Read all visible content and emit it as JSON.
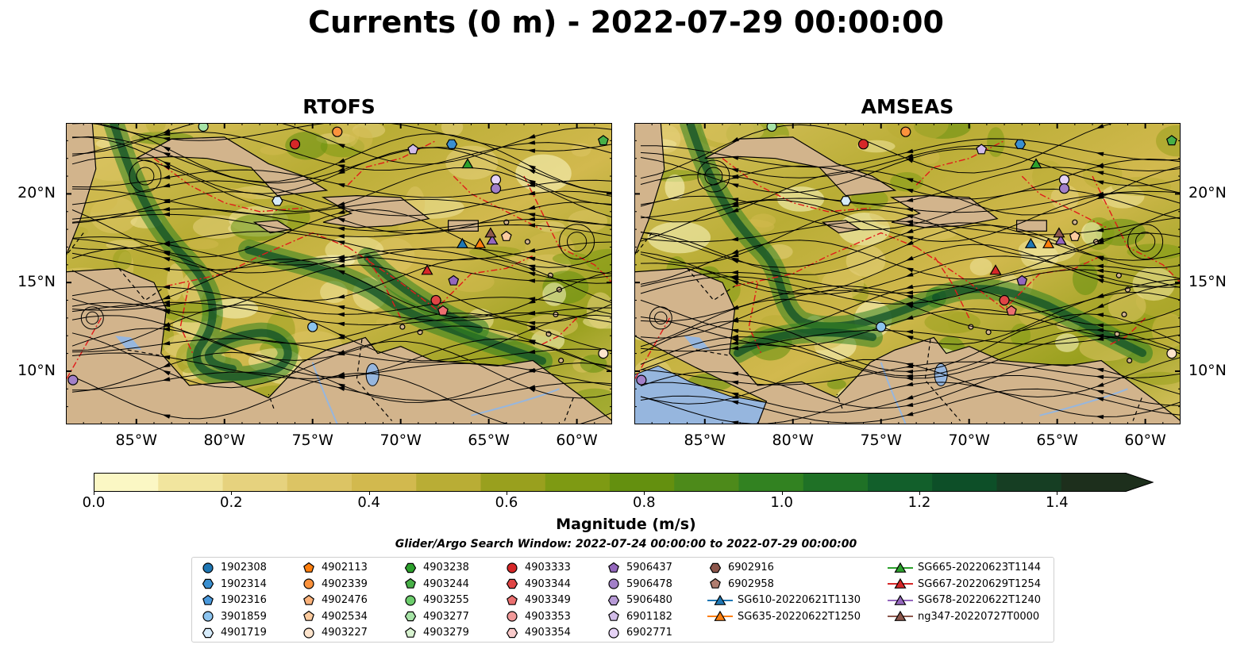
{
  "title": "Currents (0 m) - 2022-07-29 00:00:00",
  "panels": [
    {
      "title": "RTOFS",
      "id": "rtofs"
    },
    {
      "title": "AMSEAS",
      "id": "amseas"
    }
  ],
  "axes": {
    "lon_labels": [
      "85°W",
      "80°W",
      "75°W",
      "70°W",
      "65°W",
      "60°W"
    ],
    "lat_labels": [
      "20°N",
      "15°N",
      "10°N"
    ]
  },
  "colorbar": {
    "label": "Magnitude (m/s)",
    "ticks": [
      "0.0",
      "0.2",
      "0.4",
      "0.6",
      "0.8",
      "1.0",
      "1.2",
      "1.4"
    ],
    "range": [
      0,
      1.5
    ],
    "colors": [
      "#fbf7c4",
      "#f1e59e",
      "#e6d27e",
      "#dcc464",
      "#d2b94e",
      "#b9ad35",
      "#99a01e",
      "#7e9a13",
      "#64900f",
      "#4d8a1a",
      "#328221",
      "#1f7126",
      "#125f2b",
      "#0d4f28",
      "#163e23",
      "#1d2f1c"
    ]
  },
  "search_window": "Glider/Argo Search Window: 2022-07-24 00:00:00 to 2022-07-29 00:00:00",
  "legend": {
    "columns": [
      [
        {
          "label": "1902308",
          "marker": "circle",
          "color": "#1f77b4"
        },
        {
          "label": "1902314",
          "marker": "hexagon",
          "color": "#3a8fd0"
        },
        {
          "label": "1902316",
          "marker": "pentagon",
          "color": "#4a99dc"
        },
        {
          "label": "3901859",
          "marker": "circle",
          "color": "#8cc4ef"
        },
        {
          "label": "4901719",
          "marker": "hexagon",
          "color": "#d6ebfa"
        }
      ],
      [
        {
          "label": "4902113",
          "marker": "pentagon",
          "color": "#ff7f0e"
        },
        {
          "label": "4902339",
          "marker": "circle",
          "color": "#fb923c"
        },
        {
          "label": "4902476",
          "marker": "pentagon",
          "color": "#fbb27a"
        },
        {
          "label": "4902534",
          "marker": "pentagon",
          "color": "#fccb9e"
        },
        {
          "label": "4903227",
          "marker": "circle",
          "color": "#fde4cc"
        }
      ],
      [
        {
          "label": "4903238",
          "marker": "hexagon",
          "color": "#2ca02c"
        },
        {
          "label": "4903244",
          "marker": "pentagon",
          "color": "#47b047"
        },
        {
          "label": "4903255",
          "marker": "circle",
          "color": "#6ccd6c"
        },
        {
          "label": "4903277",
          "marker": "hexagon",
          "color": "#a6e3a6"
        },
        {
          "label": "4903279",
          "marker": "pentagon",
          "color": "#d8f3d0"
        }
      ],
      [
        {
          "label": "4903333",
          "marker": "circle",
          "color": "#d62728"
        },
        {
          "label": "4903344",
          "marker": "hexagon",
          "color": "#e04545"
        },
        {
          "label": "4903349",
          "marker": "pentagon",
          "color": "#eb7070"
        },
        {
          "label": "4903353",
          "marker": "circle",
          "color": "#f29a9a"
        },
        {
          "label": "4903354",
          "marker": "hexagon",
          "color": "#f8caca"
        }
      ],
      [
        {
          "label": "5906437",
          "marker": "pentagon",
          "color": "#9467bd"
        },
        {
          "label": "5906478",
          "marker": "circle",
          "color": "#a27fc8"
        },
        {
          "label": "5906480",
          "marker": "hexagon",
          "color": "#b79ad6"
        },
        {
          "label": "6901182",
          "marker": "pentagon",
          "color": "#d2bce8"
        },
        {
          "label": "6902771",
          "marker": "circle",
          "color": "#e6d3f6"
        }
      ],
      [
        {
          "label": "6902916",
          "marker": "hexagon",
          "color": "#8c564b"
        },
        {
          "label": "6902958",
          "marker": "pentagon",
          "color": "#b07d6f"
        },
        {
          "label": "SG610-20220621T1130",
          "marker": "triangle-line",
          "color": "#1f77b4"
        },
        {
          "label": "SG635-20220622T1250",
          "marker": "triangle-line",
          "color": "#ff7f0e"
        }
      ],
      [
        {
          "label": "SG665-20220623T1144",
          "marker": "triangle-line",
          "color": "#2ca02c"
        },
        {
          "label": "SG667-20220629T1254",
          "marker": "triangle-line",
          "color": "#d62728"
        },
        {
          "label": "SG678-20220622T1240",
          "marker": "triangle-line",
          "color": "#9467bd"
        },
        {
          "label": "ng347-20220727T0000",
          "marker": "triangle-line",
          "color": "#8c564b"
        }
      ]
    ]
  },
  "map_colors": {
    "land": "#d2b48c",
    "lake": "#96b6de",
    "eez_line": "#e11a1a"
  },
  "map_extent": {
    "lon": [
      -89,
      -58
    ],
    "lat": [
      7,
      24
    ]
  },
  "markers": {
    "rtofs": [
      {
        "lon": -76.0,
        "lat": 22.8,
        "marker": "circle",
        "color": "#d62728"
      },
      {
        "lon": -73.6,
        "lat": 23.5,
        "marker": "circle",
        "color": "#fb923c"
      },
      {
        "lon": -81.2,
        "lat": 23.8,
        "marker": "circle",
        "color": "#a6e3a6"
      },
      {
        "lon": -69.3,
        "lat": 22.5,
        "marker": "pentagon",
        "color": "#d2bce8"
      },
      {
        "lon": -67.1,
        "lat": 22.8,
        "marker": "hexagon",
        "color": "#3a8fd0"
      },
      {
        "lon": -66.2,
        "lat": 21.7,
        "marker": "triangle",
        "color": "#2ca02c"
      },
      {
        "lon": -64.6,
        "lat": 20.8,
        "marker": "circle",
        "color": "#e6d3f6"
      },
      {
        "lon": -64.6,
        "lat": 20.3,
        "marker": "circle",
        "color": "#a27fc8"
      },
      {
        "lon": -77.0,
        "lat": 19.6,
        "marker": "hexagon",
        "color": "#d6ebfa"
      },
      {
        "lon": -66.5,
        "lat": 17.2,
        "marker": "triangle",
        "color": "#1f77b4"
      },
      {
        "lon": -65.5,
        "lat": 17.2,
        "marker": "triangle",
        "color": "#ff7f0e"
      },
      {
        "lon": -64.8,
        "lat": 17.4,
        "marker": "triangle",
        "color": "#9467bd"
      },
      {
        "lon": -64.9,
        "lat": 17.8,
        "marker": "triangle",
        "color": "#8c564b"
      },
      {
        "lon": -64.0,
        "lat": 17.6,
        "marker": "pentagon",
        "color": "#fccb9e"
      },
      {
        "lon": -68.5,
        "lat": 15.7,
        "marker": "triangle",
        "color": "#d62728"
      },
      {
        "lon": -67.0,
        "lat": 15.1,
        "marker": "pentagon",
        "color": "#9467bd"
      },
      {
        "lon": -68.0,
        "lat": 14.0,
        "marker": "circle",
        "color": "#e04545"
      },
      {
        "lon": -67.6,
        "lat": 13.4,
        "marker": "pentagon",
        "color": "#eb7070"
      },
      {
        "lon": -75.0,
        "lat": 12.5,
        "marker": "circle",
        "color": "#8cc4ef"
      },
      {
        "lon": -58.5,
        "lat": 11.0,
        "marker": "circle",
        "color": "#fde4cc"
      },
      {
        "lon": -88.6,
        "lat": 9.5,
        "marker": "circle",
        "color": "#a27fc8"
      },
      {
        "lon": -58.5,
        "lat": 23.0,
        "marker": "pentagon",
        "color": "#47b047"
      }
    ],
    "amseas": [
      {
        "lon": -76.0,
        "lat": 22.8,
        "marker": "circle",
        "color": "#d62728"
      },
      {
        "lon": -73.6,
        "lat": 23.5,
        "marker": "circle",
        "color": "#fb923c"
      },
      {
        "lon": -81.2,
        "lat": 23.8,
        "marker": "circle",
        "color": "#a6e3a6"
      },
      {
        "lon": -69.3,
        "lat": 22.5,
        "marker": "pentagon",
        "color": "#d2bce8"
      },
      {
        "lon": -67.1,
        "lat": 22.8,
        "marker": "hexagon",
        "color": "#3a8fd0"
      },
      {
        "lon": -66.2,
        "lat": 21.7,
        "marker": "triangle",
        "color": "#2ca02c"
      },
      {
        "lon": -64.6,
        "lat": 20.8,
        "marker": "circle",
        "color": "#e6d3f6"
      },
      {
        "lon": -64.6,
        "lat": 20.3,
        "marker": "circle",
        "color": "#a27fc8"
      },
      {
        "lon": -77.0,
        "lat": 19.6,
        "marker": "hexagon",
        "color": "#d6ebfa"
      },
      {
        "lon": -66.5,
        "lat": 17.2,
        "marker": "triangle",
        "color": "#1f77b4"
      },
      {
        "lon": -65.5,
        "lat": 17.2,
        "marker": "triangle",
        "color": "#ff7f0e"
      },
      {
        "lon": -64.8,
        "lat": 17.4,
        "marker": "triangle",
        "color": "#9467bd"
      },
      {
        "lon": -64.9,
        "lat": 17.8,
        "marker": "triangle",
        "color": "#8c564b"
      },
      {
        "lon": -64.0,
        "lat": 17.6,
        "marker": "pentagon",
        "color": "#fccb9e"
      },
      {
        "lon": -68.5,
        "lat": 15.7,
        "marker": "triangle",
        "color": "#d62728"
      },
      {
        "lon": -67.0,
        "lat": 15.1,
        "marker": "pentagon",
        "color": "#9467bd"
      },
      {
        "lon": -68.0,
        "lat": 14.0,
        "marker": "circle",
        "color": "#e04545"
      },
      {
        "lon": -67.6,
        "lat": 13.4,
        "marker": "pentagon",
        "color": "#eb7070"
      },
      {
        "lon": -75.0,
        "lat": 12.5,
        "marker": "circle",
        "color": "#8cc4ef"
      },
      {
        "lon": -58.5,
        "lat": 11.0,
        "marker": "circle",
        "color": "#fde4cc"
      },
      {
        "lon": -88.6,
        "lat": 9.5,
        "marker": "circle",
        "color": "#a27fc8"
      },
      {
        "lon": -58.5,
        "lat": 23.0,
        "marker": "pentagon",
        "color": "#47b047"
      }
    ]
  }
}
